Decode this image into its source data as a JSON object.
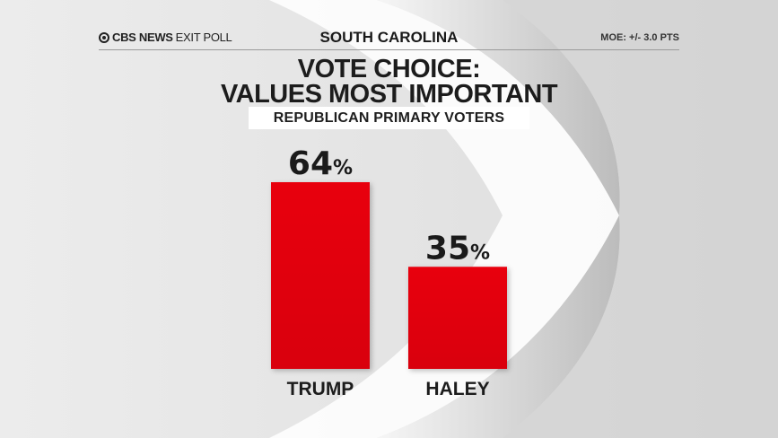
{
  "header": {
    "brand_bold": "CBS NEWS",
    "brand_light": "EXIT POLL",
    "state": "SOUTH CAROLINA",
    "moe": "MOE: +/- 3.0 PTS"
  },
  "chart_data": {
    "type": "bar",
    "title_line1": "VOTE CHOICE:",
    "title_line2": "VALUES MOST IMPORTANT",
    "subtitle": "REPUBLICAN PRIMARY VOTERS",
    "categories": [
      "TRUMP",
      "HALEY"
    ],
    "values": [
      64,
      35
    ],
    "value_labels": [
      "64",
      "35"
    ],
    "value_suffix": "%",
    "bar_color": "#d9000c",
    "ylim": [
      0,
      100
    ],
    "grid": false,
    "legend": "none"
  }
}
